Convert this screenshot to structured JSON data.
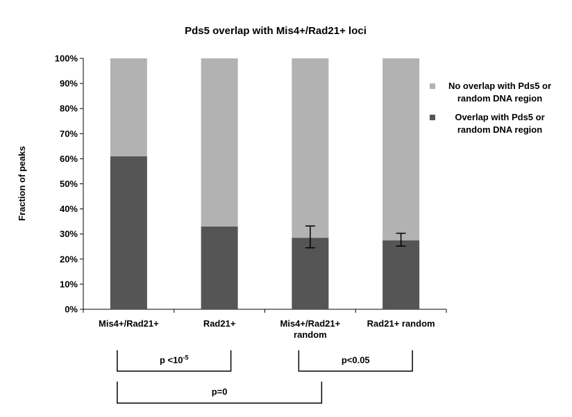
{
  "chart_data": {
    "type": "bar",
    "stacked": true,
    "title": "Pds5 overlap with Mis4+/Rad21+ loci",
    "ylabel": "Fraction of peaks",
    "xlabel": "",
    "ylim": [
      0,
      100
    ],
    "y_ticks": [
      "0%",
      "10%",
      "20%",
      "30%",
      "40%",
      "50%",
      "60%",
      "70%",
      "80%",
      "90%",
      "100%"
    ],
    "categories": [
      [
        "Mis4+/Rad21+"
      ],
      [
        "Rad21+"
      ],
      [
        "Mis4+/Rad21+",
        "random"
      ],
      [
        "Rad21+ random"
      ]
    ],
    "series": [
      {
        "name": "Overlap with Pds5 or random DNA region",
        "color": "#555555",
        "values": [
          61,
          33,
          28.5,
          27.5
        ],
        "error": [
          null,
          null,
          [
            24.5,
            33.2
          ],
          [
            25.2,
            30.3
          ]
        ]
      },
      {
        "name": "No overlap with Pds5 or random DNA region",
        "color": "#b2b2b2",
        "values": [
          39,
          67,
          71.5,
          72.5
        ]
      }
    ],
    "legend": {
      "position": "right",
      "items": [
        {
          "lines": [
            "No overlap with Pds5 or",
            "random DNA region"
          ],
          "color": "#b2b2b2"
        },
        {
          "lines": [
            "Overlap with Pds5 or",
            "random DNA region"
          ],
          "color": "#555555"
        }
      ]
    },
    "comparisons": [
      {
        "from": 0,
        "to": 1,
        "row": 0,
        "label": "p <10",
        "sup": "-5"
      },
      {
        "from": 2,
        "to": 3,
        "row": 0,
        "label": "p<0.05",
        "sup": ""
      },
      {
        "from": 0,
        "to": 2,
        "row": 1,
        "label": "p=0",
        "sup": ""
      }
    ]
  }
}
